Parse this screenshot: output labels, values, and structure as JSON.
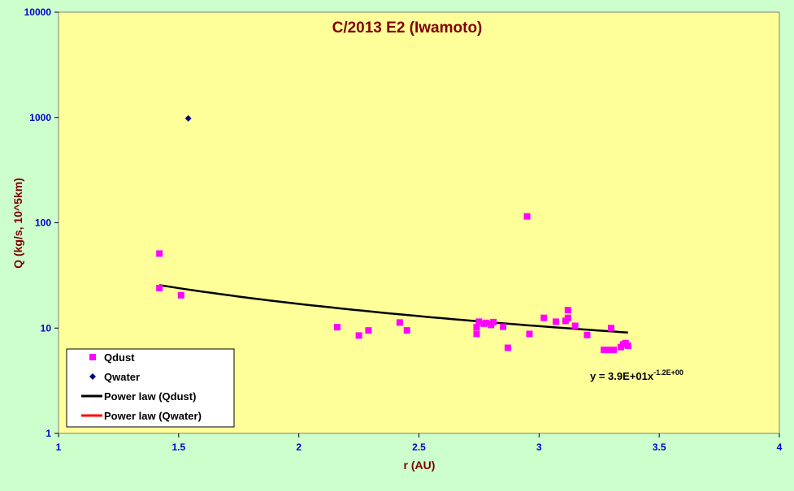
{
  "chart_data": {
    "type": "scatter",
    "title": "C/2013 E2 (Iwamoto)",
    "xlabel": "r (AU)",
    "ylabel": "Q (kg/s, 10^5km)",
    "xlim": [
      1,
      4
    ],
    "ylim": [
      1,
      10000
    ],
    "yscale": "log",
    "x_ticks": [
      "1",
      "1.5",
      "2",
      "2.5",
      "3",
      "3.5",
      "4"
    ],
    "y_ticks": [
      "1",
      "10",
      "100",
      "1000",
      "10000"
    ],
    "grid": false,
    "legend_position": "bottom-left",
    "colors": {
      "plot_background": "#ffff99",
      "outer_background": "#ccffcc",
      "title": "#800000",
      "ticks": "#0000cc",
      "qdust": "#ff00ff",
      "qwater": "#000080",
      "power_qdust": "#000000",
      "power_qwater": "#ff0000"
    },
    "series": [
      {
        "name": "Qdust",
        "marker": "square",
        "points": [
          [
            1.42,
            51
          ],
          [
            1.42,
            24
          ],
          [
            1.51,
            20.5
          ],
          [
            2.16,
            10.2
          ],
          [
            2.25,
            8.5
          ],
          [
            2.29,
            9.5
          ],
          [
            2.42,
            11.3
          ],
          [
            2.45,
            9.5
          ],
          [
            2.74,
            8.8
          ],
          [
            2.74,
            10.2
          ],
          [
            2.75,
            11.5
          ],
          [
            2.77,
            11
          ],
          [
            2.78,
            11.2
          ],
          [
            2.8,
            10.7
          ],
          [
            2.81,
            11.4
          ],
          [
            2.85,
            10.3
          ],
          [
            2.87,
            6.5
          ],
          [
            2.95,
            115
          ],
          [
            2.96,
            8.8
          ],
          [
            3.02,
            12.5
          ],
          [
            3.07,
            11.5
          ],
          [
            3.11,
            11.7
          ],
          [
            3.12,
            12.5
          ],
          [
            3.12,
            14.8
          ],
          [
            3.15,
            10.5
          ],
          [
            3.2,
            8.6
          ],
          [
            3.27,
            6.2
          ],
          [
            3.29,
            6.2
          ],
          [
            3.3,
            10
          ],
          [
            3.31,
            6.2
          ],
          [
            3.34,
            6.6
          ],
          [
            3.35,
            7
          ],
          [
            3.36,
            7.2
          ],
          [
            3.37,
            6.8
          ]
        ]
      },
      {
        "name": "Qwater",
        "marker": "diamond",
        "points": [
          [
            1.54,
            980
          ]
        ]
      },
      {
        "name": "Power law (Qdust)",
        "type": "line",
        "coef": 39,
        "exponent": -1.2,
        "xrange": [
          1.42,
          3.37
        ]
      },
      {
        "name": "Power law (Qwater)",
        "type": "line"
      }
    ],
    "annotation": {
      "base": "y = 3.9E+01x",
      "exponent": "-1.2E+00"
    }
  }
}
